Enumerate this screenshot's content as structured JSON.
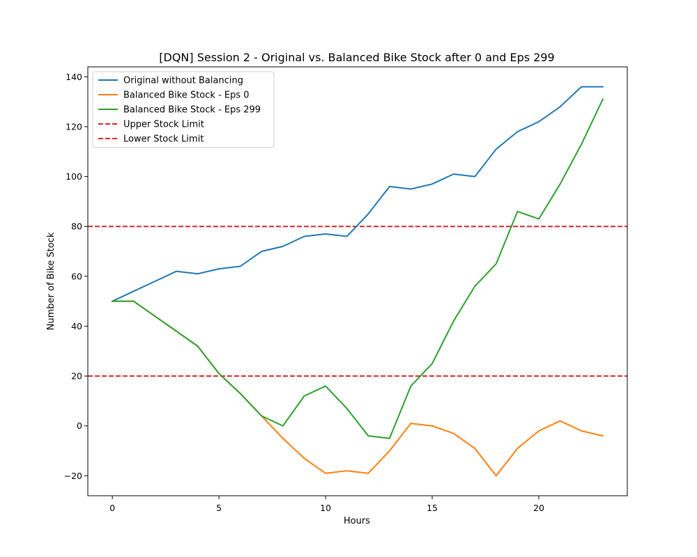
{
  "chart_data": {
    "type": "line",
    "title": "[DQN] Session 2 - Original vs. Balanced Bike Stock after 0 and Eps 299",
    "xlabel": "Hours",
    "ylabel": "Number of Bike Stock",
    "xlim": [
      -1.15,
      24.15
    ],
    "ylim": [
      -28,
      144
    ],
    "x_ticks": [
      0,
      5,
      10,
      15,
      20
    ],
    "y_ticks": [
      -20,
      0,
      20,
      40,
      60,
      80,
      100,
      120,
      140
    ],
    "x": [
      0,
      1,
      2,
      3,
      4,
      5,
      6,
      7,
      8,
      9,
      10,
      11,
      12,
      13,
      14,
      15,
      16,
      17,
      18,
      19,
      20,
      21,
      22,
      23
    ],
    "series": [
      {
        "name": "Original without Balancing",
        "color": "#1f77b4",
        "style": "solid",
        "values": [
          50,
          54,
          58,
          62,
          61,
          63,
          64,
          70,
          72,
          76,
          77,
          76,
          85,
          96,
          95,
          97,
          101,
          100,
          111,
          118,
          122,
          128,
          136,
          136
        ]
      },
      {
        "name": "Balanced Bike Stock - Eps 0",
        "color": "#ff7f0e",
        "style": "solid",
        "values": [
          50,
          50,
          44,
          38,
          32,
          21,
          13,
          4,
          -5,
          -13,
          -19,
          -18,
          -19,
          -10,
          1,
          0,
          -3,
          -9,
          -20,
          -9,
          -2,
          2,
          -2,
          -4
        ]
      },
      {
        "name": "Balanced Bike Stock - Eps 299",
        "color": "#2ca02c",
        "style": "solid",
        "values": [
          50,
          50,
          44,
          38,
          32,
          21,
          13,
          4,
          0,
          12,
          16,
          7,
          -4,
          -5,
          16,
          25,
          42,
          56,
          65,
          86,
          83,
          97,
          113,
          131
        ]
      }
    ],
    "hlines": [
      {
        "name": "Upper Stock Limit",
        "y": 80,
        "color": "#d62728",
        "style": "dashed"
      },
      {
        "name": "Lower Stock Limit",
        "y": 20,
        "color": "#d62728",
        "style": "dashed"
      }
    ],
    "legend": {
      "position": "top-left",
      "entries": [
        "Original without Balancing",
        "Balanced Bike Stock - Eps 0",
        "Balanced Bike Stock - Eps 299",
        "Upper Stock Limit",
        "Lower Stock Limit"
      ]
    },
    "grid": false
  }
}
